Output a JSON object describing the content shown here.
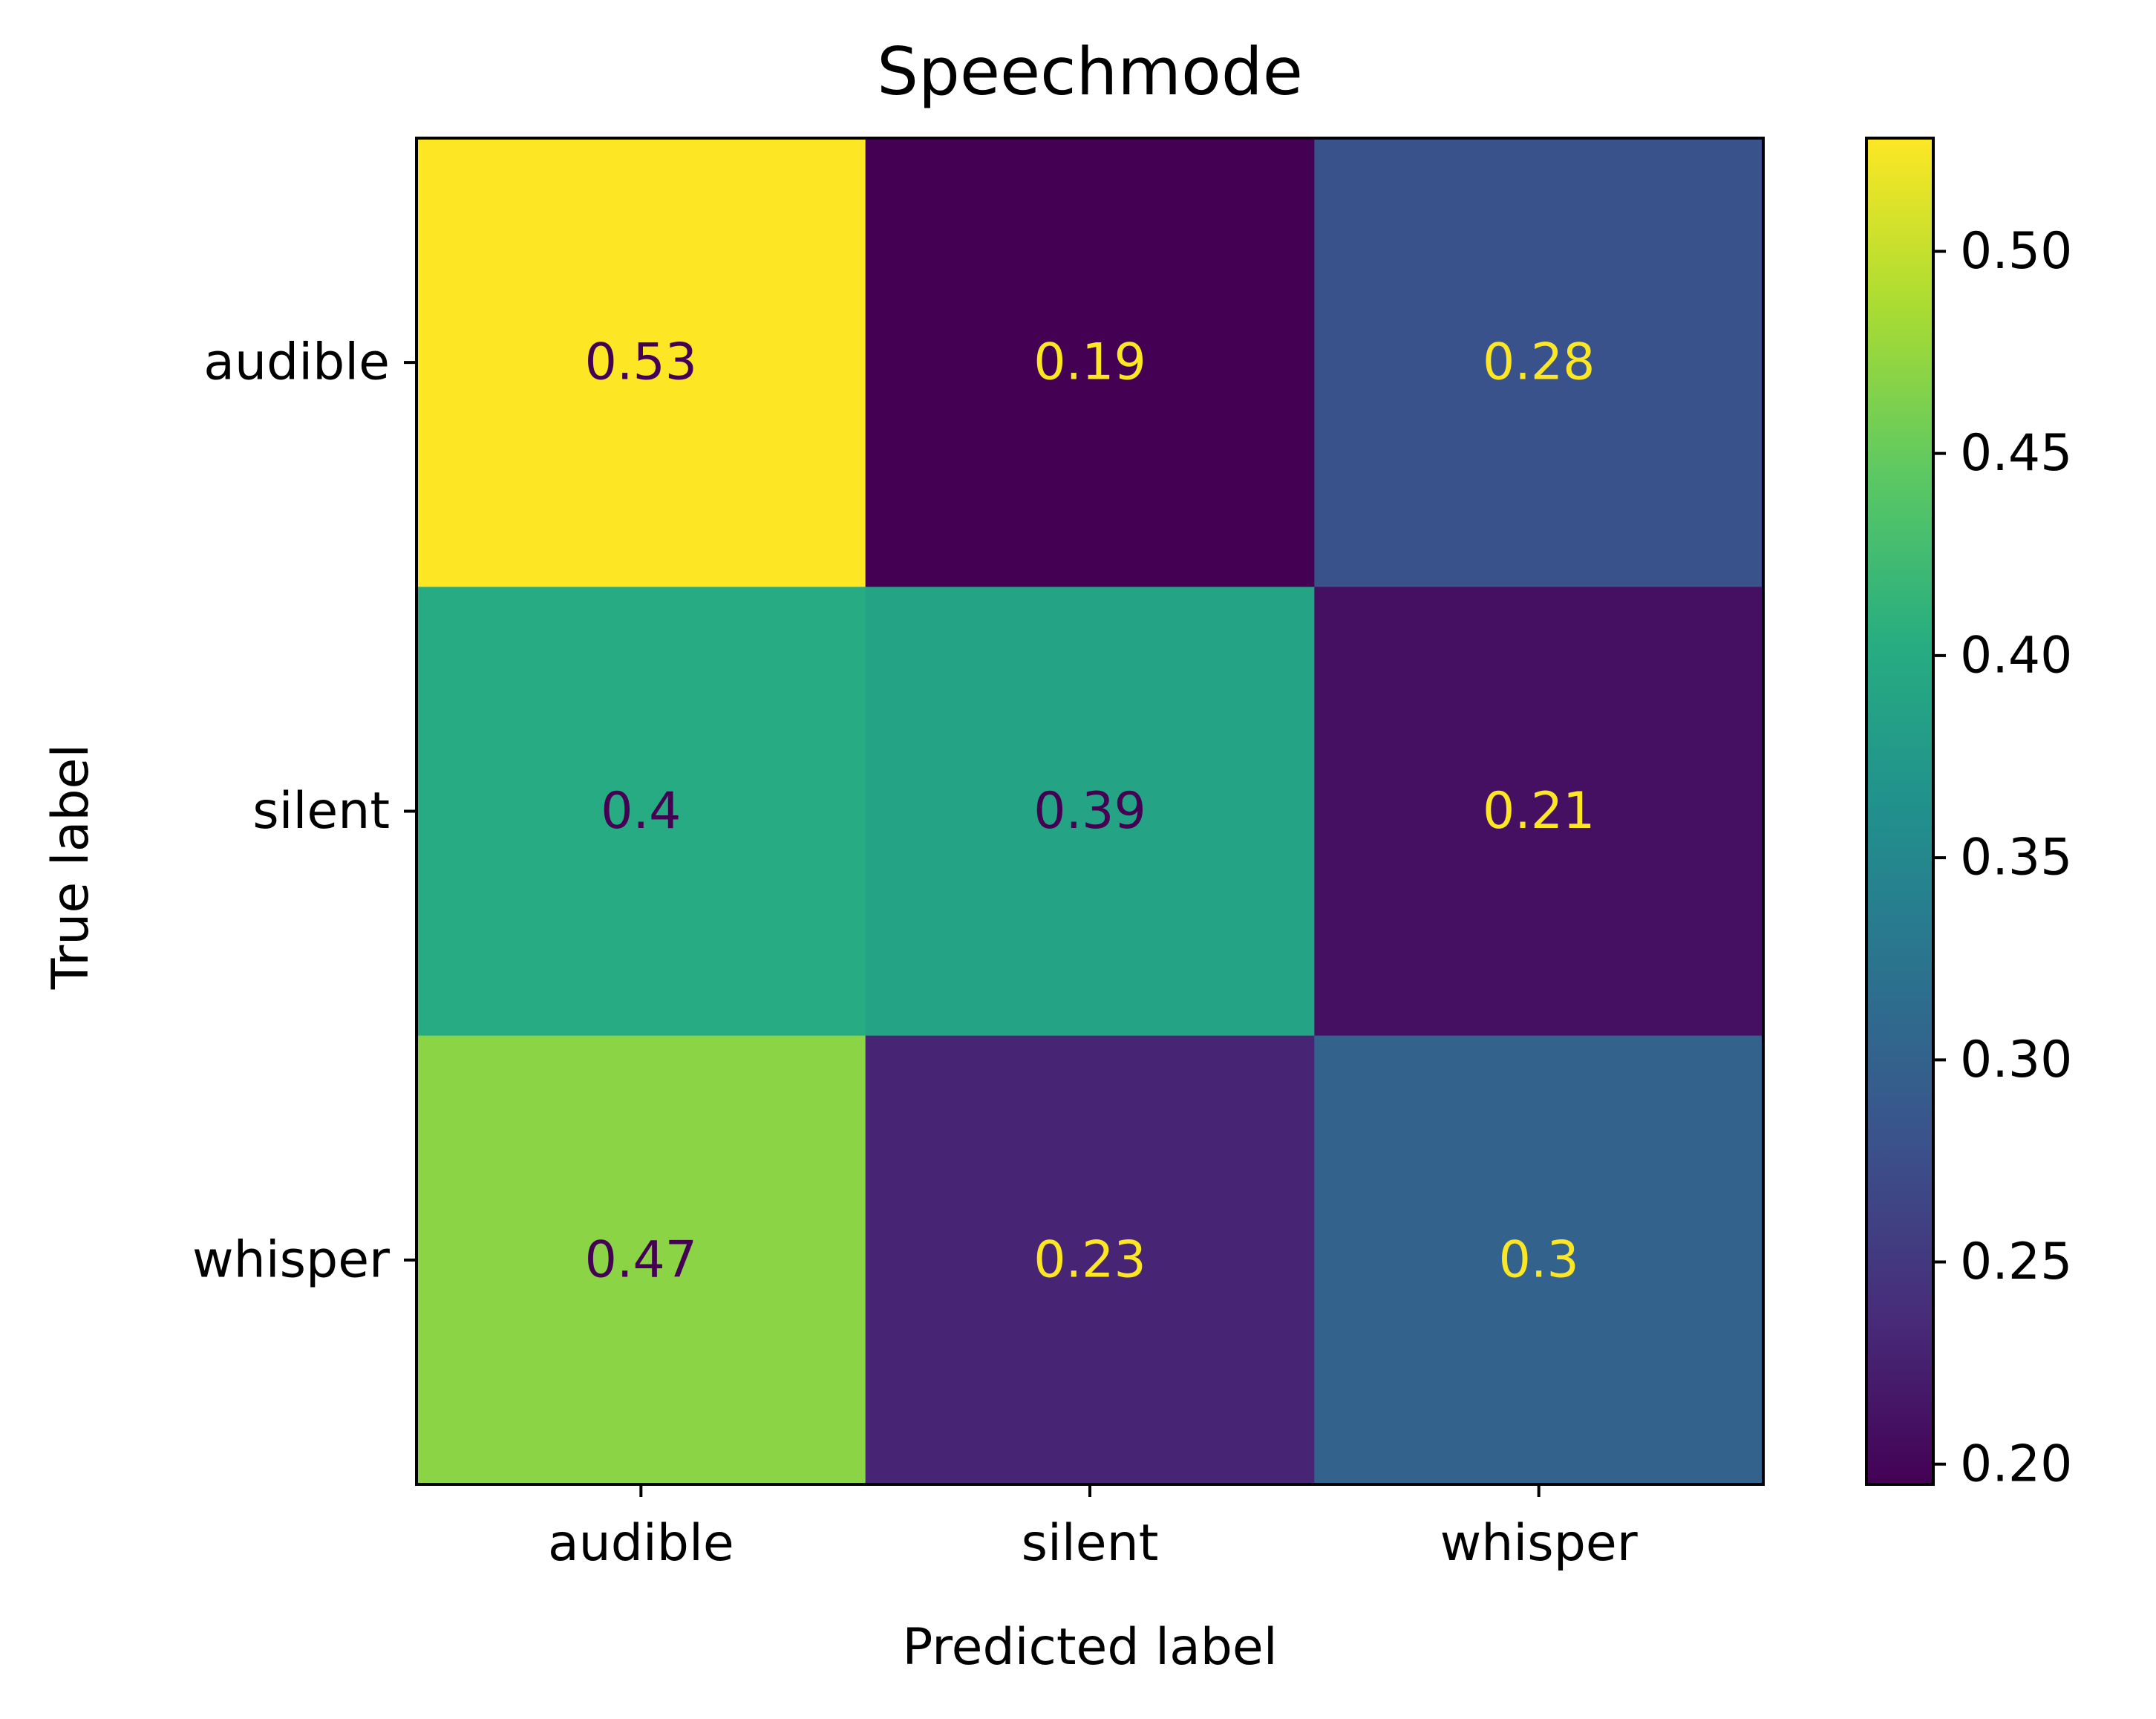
{
  "chart_data": {
    "type": "heatmap",
    "title": "Speechmode",
    "xlabel": "Predicted label",
    "ylabel": "True label",
    "x_categories": [
      "audible",
      "silent",
      "whisper"
    ],
    "y_categories": [
      "audible",
      "silent",
      "whisper"
    ],
    "values": [
      [
        0.53,
        0.19,
        0.28
      ],
      [
        0.4,
        0.39,
        0.21
      ],
      [
        0.47,
        0.23,
        0.3
      ]
    ],
    "value_labels": [
      [
        "0.53",
        "0.19",
        "0.28"
      ],
      [
        "0.4",
        "0.39",
        "0.21"
      ],
      [
        "0.47",
        "0.23",
        "0.3"
      ]
    ],
    "colormap": "viridis",
    "colorbar": {
      "range": [
        0.195,
        0.528
      ],
      "ticks": [
        0.2,
        0.25,
        0.3,
        0.35,
        0.4,
        0.45,
        0.5
      ],
      "tick_labels": [
        "0.20",
        "0.25",
        "0.30",
        "0.35",
        "0.40",
        "0.45",
        "0.50"
      ]
    },
    "text_colors": {
      "light": "#fde725",
      "dark": "#440154"
    },
    "grid": false,
    "legend": "colorbar-right"
  }
}
